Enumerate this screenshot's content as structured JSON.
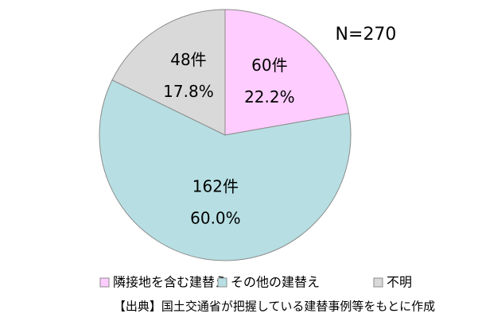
{
  "chart_data": {
    "type": "pie",
    "annotation": "N=270",
    "categories": [
      "隣接地を含む建替え",
      "その他の建替え",
      "不明"
    ],
    "values": [
      60,
      162,
      48
    ],
    "value_labels": [
      "60件",
      "162件",
      "48件"
    ],
    "percentages": [
      22.2,
      60.0,
      17.8
    ],
    "percentage_labels": [
      "22.2%",
      "60.0%",
      "17.8%"
    ],
    "colors": [
      "#ffccff",
      "#b7dfe3",
      "#d9d9d9"
    ],
    "source": "【出典】国土交通省が把握している建替事例等をもとに作成"
  }
}
